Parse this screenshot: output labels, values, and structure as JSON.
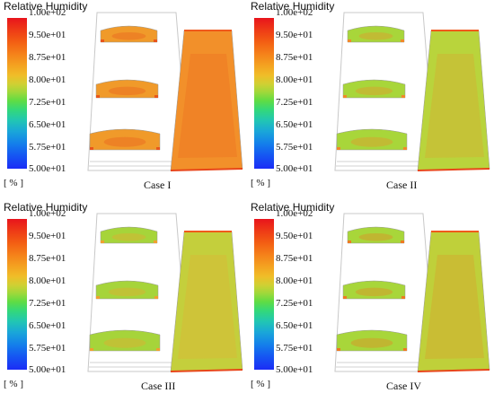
{
  "legend": {
    "title": "Relative Humidity",
    "unit": "[ % ]",
    "ticks": [
      "1.00e+02",
      "9.50e+01",
      "8.75e+01",
      "8.00e+01",
      "7.25e+01",
      "6.50e+01",
      "5.75e+01",
      "5.00e+01"
    ]
  },
  "panels": [
    {
      "label": "Case I",
      "shelf": "#f09a2a",
      "bed": "#f2902a",
      "accent": "#e8561c"
    },
    {
      "label": "Case II",
      "shelf": "#a8d63a",
      "bed": "#b9d43c",
      "accent": "#f08a2a"
    },
    {
      "label": "Case III",
      "shelf": "#a6d43a",
      "bed": "#c4cf3c",
      "accent": "#f0a030"
    },
    {
      "label": "Case IV",
      "shelf": "#a8d63a",
      "bed": "#bfd03a",
      "accent": "#ee7a22"
    }
  ]
}
